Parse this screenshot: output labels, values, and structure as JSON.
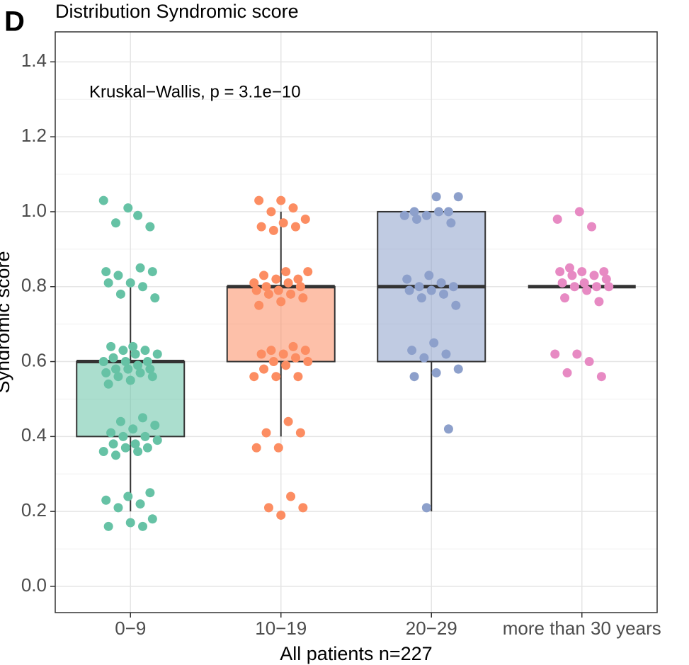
{
  "chart_data": {
    "type": "box",
    "panel_label": "D",
    "title": "Distribution Syndromic score",
    "annotation": "Kruskal−Wallis, p = 3.1e−10",
    "x_label": "All patients n=227",
    "y_label": "Syndromic score",
    "categories": [
      "0−9",
      "10−19",
      "20−29",
      "more than 30 years"
    ],
    "colors": [
      "#66c2a5",
      "#fc8d62",
      "#8da0cb",
      "#e78ac3"
    ],
    "boxes": [
      {
        "whisker_low": 0.2,
        "q1": 0.4,
        "median": 0.6,
        "q3": 0.6,
        "whisker_high": 0.8
      },
      {
        "whisker_low": 0.4,
        "q1": 0.6,
        "median": 0.8,
        "q3": 0.8,
        "whisker_high": 1.0
      },
      {
        "whisker_low": 0.2,
        "q1": 0.6,
        "median": 0.8,
        "q3": 1.0,
        "whisker_high": 1.0
      },
      {
        "whisker_low": 0.8,
        "q1": 0.8,
        "median": 0.8,
        "q3": 0.8,
        "whisker_high": 0.8
      }
    ],
    "points": [
      [
        1.03,
        0.99,
        0.97,
        0.96,
        1.01,
        0.84,
        0.85,
        0.83,
        0.84,
        0.81,
        0.81,
        0.8,
        0.78,
        0.77,
        0.64,
        0.64,
        0.63,
        0.63,
        0.62,
        0.62,
        0.61,
        0.6,
        0.6,
        0.6,
        0.59,
        0.58,
        0.58,
        0.58,
        0.57,
        0.57,
        0.56,
        0.56,
        0.55,
        0.54,
        0.45,
        0.44,
        0.43,
        0.42,
        0.41,
        0.4,
        0.4,
        0.39,
        0.38,
        0.38,
        0.37,
        0.37,
        0.36,
        0.36,
        0.35,
        0.25,
        0.24,
        0.23,
        0.22,
        0.21,
        0.18,
        0.17,
        0.16,
        0.16
      ],
      [
        1.03,
        1.03,
        1.01,
        1.0,
        0.98,
        0.97,
        0.96,
        0.96,
        0.95,
        0.84,
        0.84,
        0.83,
        0.82,
        0.82,
        0.81,
        0.81,
        0.8,
        0.8,
        0.79,
        0.79,
        0.78,
        0.78,
        0.77,
        0.76,
        0.75,
        0.64,
        0.63,
        0.63,
        0.62,
        0.62,
        0.61,
        0.6,
        0.6,
        0.59,
        0.58,
        0.56,
        0.56,
        0.56,
        0.44,
        0.41,
        0.41,
        0.37,
        0.37,
        0.24,
        0.21,
        0.21,
        0.19
      ],
      [
        1.04,
        1.04,
        1.0,
        1.0,
        0.99,
        0.99,
        1.0,
        0.98,
        0.97,
        0.83,
        0.82,
        0.81,
        0.8,
        0.8,
        0.79,
        0.79,
        0.78,
        0.77,
        0.75,
        0.65,
        0.63,
        0.62,
        0.61,
        0.58,
        0.57,
        0.56,
        0.42,
        0.21
      ],
      [
        1.0,
        0.98,
        0.96,
        0.85,
        0.84,
        0.84,
        0.84,
        0.83,
        0.83,
        0.82,
        0.81,
        0.81,
        0.8,
        0.8,
        0.8,
        0.79,
        0.77,
        0.76,
        0.62,
        0.62,
        0.6,
        0.57,
        0.56
      ]
    ],
    "ylim": [
      -0.07,
      1.48
    ],
    "yticks": [
      {
        "value": 0,
        "label": "0.0"
      },
      0.2,
      0.4,
      0.6,
      0.8,
      {
        "value": 1,
        "label": "1.0"
      },
      1.2,
      1.4
    ],
    "grid": true
  }
}
